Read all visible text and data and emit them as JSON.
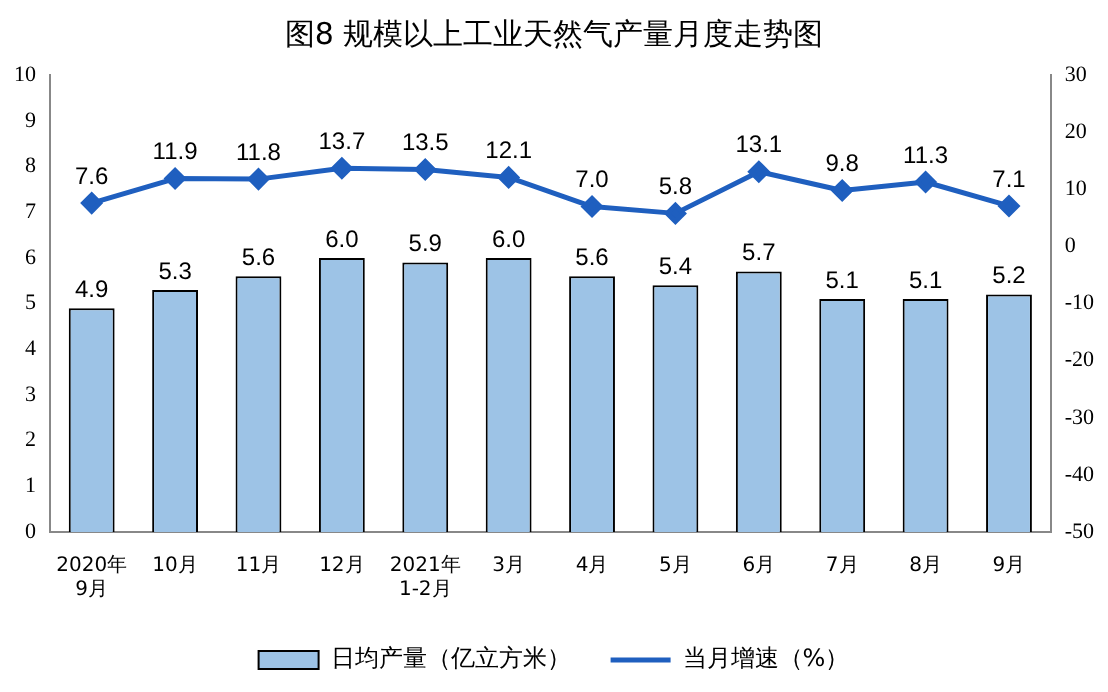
{
  "chart_data": {
    "type": "bar",
    "title": "图8  规模以上工业天然气产量月度走势图",
    "categories": [
      "2020年\n9月",
      "10月",
      "11月",
      "12月",
      "2021年\n1-2月",
      "3月",
      "4月",
      "5月",
      "6月",
      "7月",
      "8月",
      "9月"
    ],
    "series": [
      {
        "name": "日均产量（亿立方米）",
        "color": "#9dc3e6",
        "values": [
          4.9,
          5.3,
          5.6,
          6.0,
          5.9,
          6.0,
          5.6,
          5.4,
          5.7,
          5.1,
          5.1,
          5.2
        ],
        "value_labels": [
          "4.9",
          "5.3",
          "5.6",
          "6.0",
          "5.9",
          "6.0",
          "5.6",
          "5.4",
          "5.7",
          "5.1",
          "5.1",
          "5.2"
        ]
      },
      {
        "name": "当月增速（%）",
        "type": "line",
        "axis": "y2",
        "color": "#1f5fbf",
        "values": [
          7.6,
          11.9,
          11.8,
          13.7,
          13.5,
          12.1,
          7.0,
          5.8,
          13.1,
          9.8,
          11.3,
          7.1
        ],
        "value_labels": [
          "7.6",
          "11.9",
          "11.8",
          "13.7",
          "13.5",
          "12.1",
          "7.0",
          "5.8",
          "13.1",
          "9.8",
          "11.3",
          "7.1"
        ]
      }
    ],
    "ylim": [
      0,
      10
    ],
    "yticks": [
      0,
      1,
      2,
      3,
      4,
      5,
      6,
      7,
      8,
      9,
      10
    ],
    "y2lim": [
      -50,
      30
    ],
    "y2ticks": [
      -50,
      -40,
      -30,
      -20,
      -10,
      0,
      10,
      20,
      30
    ],
    "grid": false,
    "legend": "bottom",
    "marker": "diamond",
    "line_style": "solid"
  }
}
